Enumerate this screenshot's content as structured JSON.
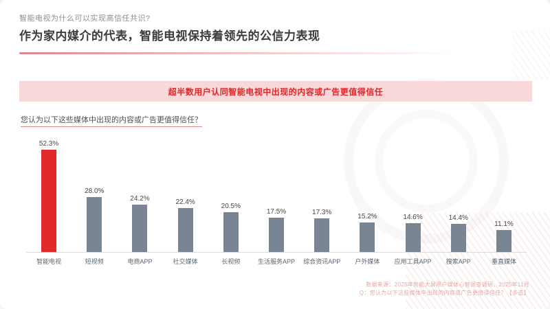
{
  "page": {
    "kicker": "智能电视为什么可以实现高信任共识?",
    "title": "作为家内媒介的代表，智能电视保持着领先的公信力表现"
  },
  "banner": {
    "text": "超半数用户认同智能电视中出现的内容或广告更值得信任"
  },
  "question": "您认为以下这些媒体中出现的内容或广告更值得信任？",
  "chart_data": {
    "type": "bar",
    "title": "您认为以下这些媒体中出现的内容或广告更值得信任？",
    "categories": [
      "智能电视",
      "短视频",
      "电商APP",
      "社交媒体",
      "长视频",
      "生活服务APP",
      "综合资讯APP",
      "户外媒体",
      "应用工具APP",
      "搜索APP",
      "垂直媒体"
    ],
    "values": [
      52.3,
      28.0,
      24.2,
      22.4,
      20.5,
      17.5,
      17.3,
      15.2,
      14.6,
      14.4,
      11.1
    ],
    "value_labels": [
      "52.3%",
      "28.0%",
      "24.2%",
      "22.4%",
      "20.5%",
      "17.5%",
      "17.3%",
      "15.2%",
      "14.6%",
      "14.4%",
      "11.1%"
    ],
    "xlabel": "",
    "ylabel": "",
    "ylim": [
      0,
      55
    ],
    "grid": false,
    "legend": false,
    "highlight_index": 0,
    "highlight_color": "#e12b2b",
    "bar_color": "#7a8594"
  },
  "footnote": {
    "line1": "数据来源：2025年智能大屏用户媒体心智调查调研，2025年11月",
    "line2": "Q：您认为以下这些媒体中出现的内容或广告更值得信任？【多选】"
  },
  "colors": {
    "accent_red": "#e12b2b",
    "banner_bg": "#f8d8d9",
    "bar_gray": "#7a8594"
  }
}
